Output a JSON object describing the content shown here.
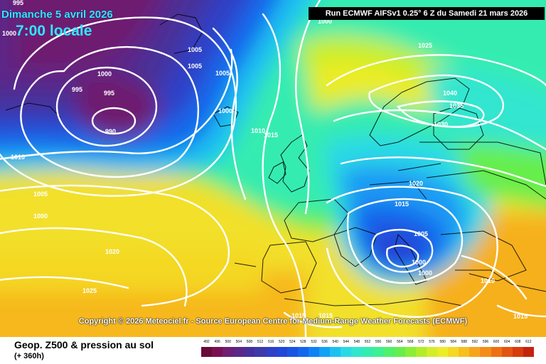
{
  "header": {
    "date": "Dimanche 5 avril 2026",
    "local_time": "7:00 locale",
    "run_info": "Run ECMWF AIFSv1 0.25° 6 Z du Samedi 21 mars 2026"
  },
  "copyright": "Copyright © 2026 Meteociel.fr - Source European Centre for Medium-Range Weather Forecasts (ECMWF)",
  "footer": {
    "parameter": "Geop. Z500 & pression au sol",
    "lead_time": "(+ 360h)"
  },
  "isobar_labels": [
    "995",
    "1000",
    "1005",
    "1005",
    "1005",
    "1000",
    "995",
    "995",
    "990",
    "1000",
    "1010",
    "1015",
    "1010",
    "1005",
    "1000",
    "1020",
    "1025",
    "1000",
    "1025",
    "1040",
    "1035",
    "1030",
    "1020",
    "1015",
    "1005",
    "1000",
    "1000",
    "1010",
    "1015",
    "1015",
    "1015"
  ],
  "color_scale": {
    "labels": [
      "492",
      "496",
      "500",
      "504",
      "508",
      "512",
      "516",
      "520",
      "524",
      "528",
      "532",
      "536",
      "540",
      "544",
      "548",
      "552",
      "556",
      "560",
      "564",
      "568",
      "572",
      "576",
      "580",
      "584",
      "588",
      "592",
      "596",
      "600",
      "604",
      "608",
      "612"
    ],
    "colors": [
      "#6a0a3a",
      "#7a1050",
      "#6e1f6f",
      "#5b2788",
      "#47309a",
      "#3d3aaa",
      "#2f3fc6",
      "#2246d8",
      "#1a55e2",
      "#1467ec",
      "#0f82f4",
      "#10a2f6",
      "#1ec0f2",
      "#2ad9e6",
      "#30e6cf",
      "#34ecb0",
      "#3ef08e",
      "#4ef06c",
      "#66ee4c",
      "#8aee36",
      "#b0ee2a",
      "#d2ee28",
      "#ecec28",
      "#f4d824",
      "#f6c020",
      "#f6a61c",
      "#f48c18",
      "#ee7014",
      "#e45410",
      "#d63c0e",
      "#c4240c"
    ]
  }
}
